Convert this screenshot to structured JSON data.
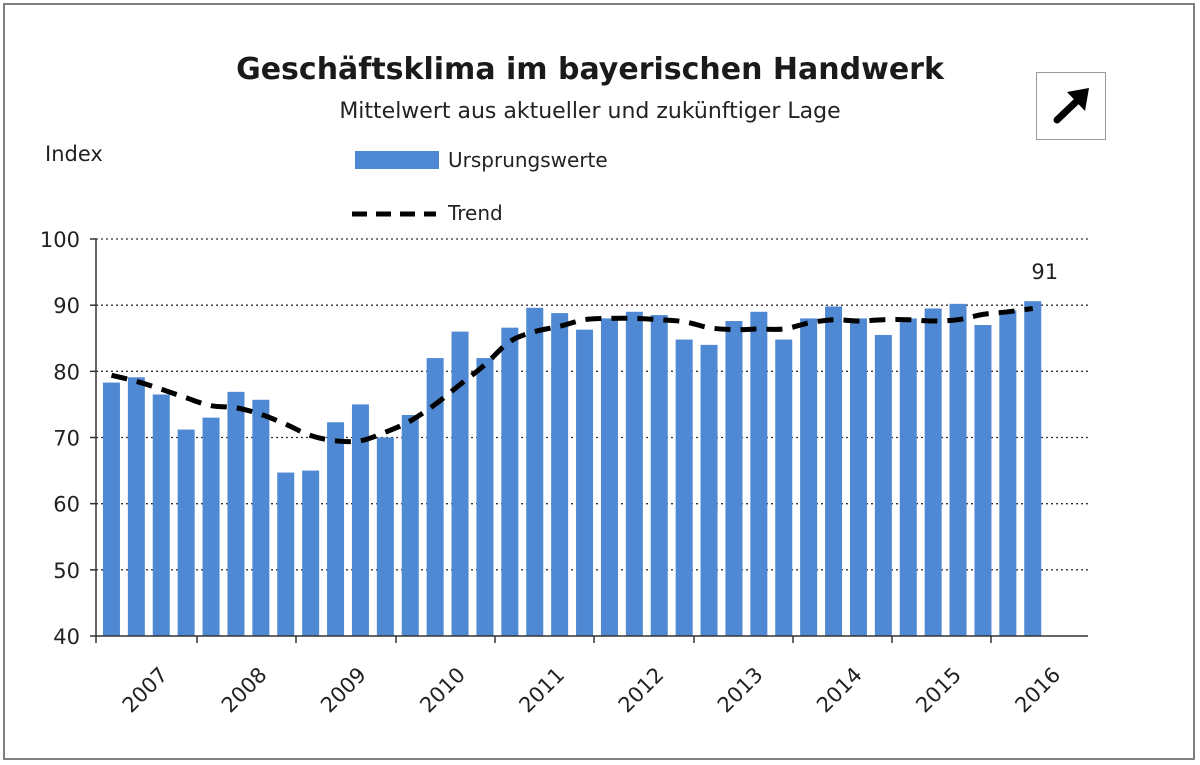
{
  "chart_data": {
    "type": "bar",
    "title": "Geschäftsklima im bayerischen Handwerk",
    "subtitle": "Mittelwert aus aktueller und zukünftiger Lage",
    "ylabel": "Index",
    "ylim": [
      40,
      100
    ],
    "yticks": [
      40,
      50,
      60,
      70,
      80,
      90,
      100
    ],
    "grid": true,
    "legend_position": "top-left",
    "x_year_labels": [
      "2007",
      "2008",
      "2009",
      "2010",
      "2011",
      "2012",
      "2013",
      "2014",
      "2015",
      "2016"
    ],
    "series": [
      {
        "name": "Ursprungswerte",
        "type": "bar",
        "color": "#4f88d3",
        "values": [
          78.3,
          79.1,
          76.5,
          71.2,
          73.0,
          76.9,
          75.7,
          64.7,
          65.0,
          72.3,
          75.0,
          70.0,
          73.4,
          82.0,
          86.0,
          82.0,
          86.6,
          89.6,
          88.8,
          86.3,
          88.0,
          89.0,
          88.5,
          84.8,
          84.0,
          87.6,
          89.0,
          84.8,
          88.0,
          89.8,
          88.0,
          85.5,
          88.0,
          89.5,
          90.2,
          87.0,
          89.2,
          90.6
        ]
      },
      {
        "name": "Trend",
        "type": "line",
        "style": "dashed",
        "color": "#000000",
        "values": [
          79.4,
          78.5,
          77.3,
          76.0,
          74.8,
          74.5,
          73.5,
          72.0,
          70.3,
          69.5,
          69.5,
          70.8,
          72.5,
          75.0,
          78.0,
          81.0,
          84.5,
          86.0,
          86.8,
          87.8,
          88.0,
          88.0,
          87.8,
          87.5,
          86.6,
          86.3,
          86.4,
          86.4,
          87.3,
          87.8,
          87.6,
          87.8,
          87.8,
          87.6,
          87.8,
          88.6,
          89.0,
          89.5
        ]
      }
    ],
    "annotations": [
      {
        "text": "91"
      }
    ]
  }
}
